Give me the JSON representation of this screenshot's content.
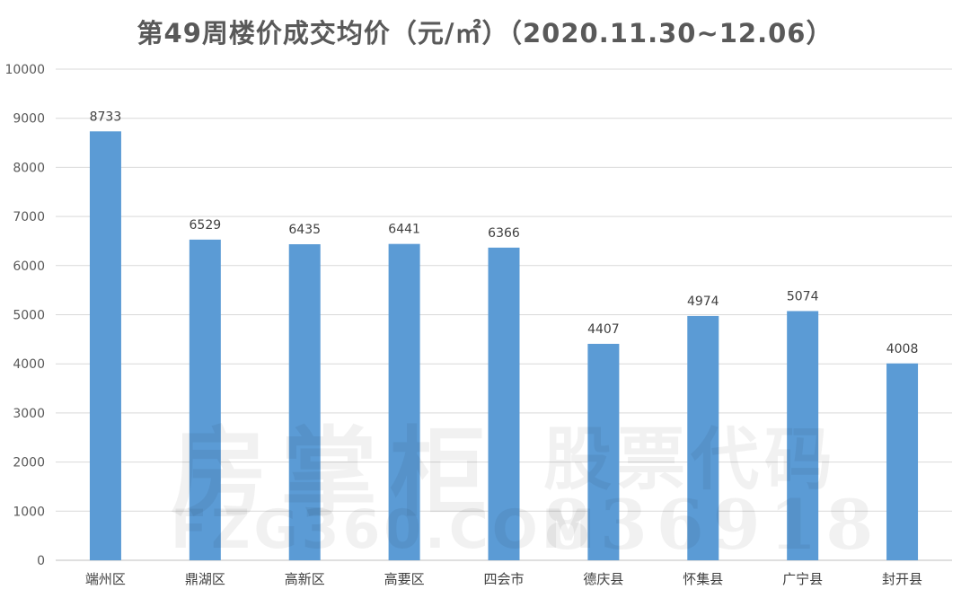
{
  "chart_data": {
    "type": "bar",
    "title": "第49周楼价成交均价（元/㎡）（2020.11.30~12.06）",
    "categories": [
      "端州区",
      "鼎湖区",
      "高新区",
      "高要区",
      "四会市",
      "德庆县",
      "怀集县",
      "广宁县",
      "封开县"
    ],
    "values": [
      8733,
      6529,
      6435,
      6441,
      6366,
      4407,
      4974,
      5074,
      4008
    ],
    "ylim": [
      0,
      10000
    ],
    "yticks": [
      0,
      1000,
      2000,
      3000,
      4000,
      5000,
      6000,
      7000,
      8000,
      9000,
      10000
    ],
    "grid": true,
    "bar_color": "#5b9bd5"
  },
  "watermark": {
    "brand": "房掌柜",
    "stock_label": "股票代码",
    "site": "FZG360.COM",
    "code": "836918"
  }
}
